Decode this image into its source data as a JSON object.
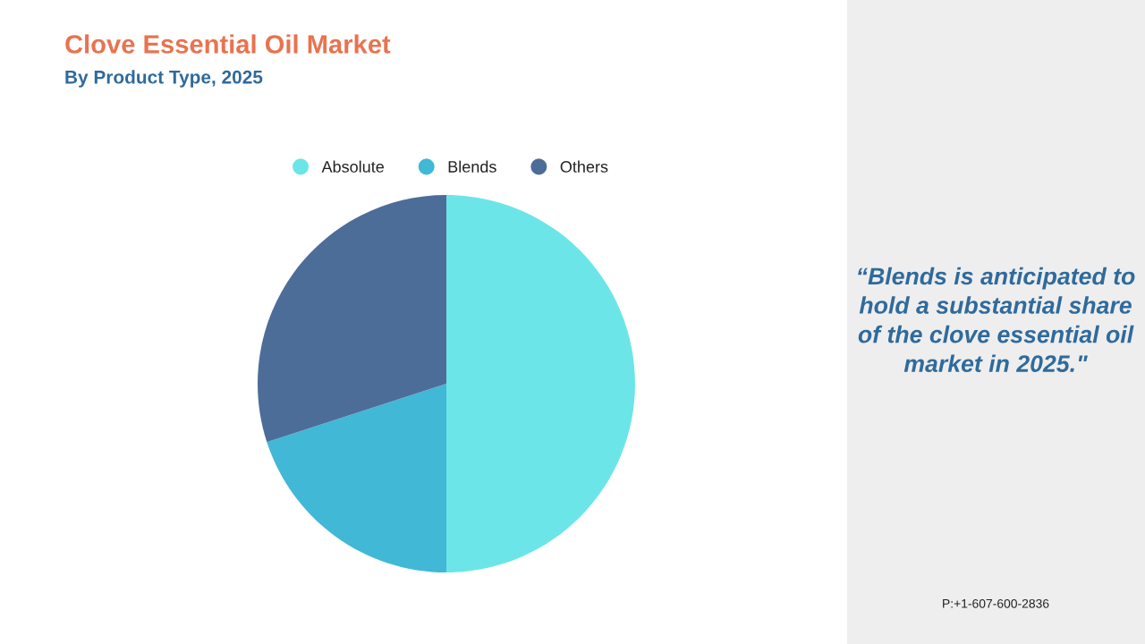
{
  "chart_data": {
    "type": "pie",
    "title": "Clove Essential Oil Market",
    "subtitle": "By Product Type, 2025",
    "categories": [
      "Absolute",
      "Blends",
      "Others"
    ],
    "values": [
      50,
      20,
      30
    ],
    "colors": [
      "#6ce5e8",
      "#41b8d5",
      "#4d6d99"
    ],
    "legend": "top",
    "annotations": [
      "“Blends is anticipated to hold a substantial share of the clove essential oil market in 2025.\"",
      "P:+1-607-600-2836"
    ]
  }
}
